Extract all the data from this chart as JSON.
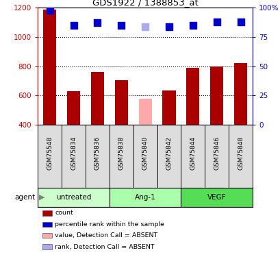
{
  "title": "GDS1922 / 1388853_at",
  "samples": [
    "GSM75548",
    "GSM75834",
    "GSM75836",
    "GSM75838",
    "GSM75840",
    "GSM75842",
    "GSM75844",
    "GSM75846",
    "GSM75848"
  ],
  "bar_values": [
    1185,
    630,
    760,
    705,
    578,
    632,
    790,
    800,
    820
  ],
  "bar_absent": [
    false,
    false,
    false,
    false,
    true,
    false,
    false,
    false,
    false
  ],
  "rank_values": [
    98,
    85,
    87,
    85,
    84,
    84,
    85,
    88,
    88
  ],
  "rank_absent": [
    false,
    false,
    false,
    false,
    true,
    false,
    false,
    false,
    false
  ],
  "bar_color_present": "#aa0000",
  "bar_color_absent": "#ffaaaa",
  "rank_color_present": "#0000cc",
  "rank_color_absent": "#aaaaee",
  "ylim_left": [
    400,
    1200
  ],
  "ylim_right": [
    0,
    100
  ],
  "yticks_left": [
    400,
    600,
    800,
    1000,
    1200
  ],
  "yticks_right": [
    0,
    25,
    50,
    75,
    100
  ],
  "yticklabels_right": [
    "0",
    "25",
    "50",
    "75",
    "100%"
  ],
  "groups": [
    {
      "label": "untreated",
      "start": 0,
      "end": 3,
      "color": "#ccffcc"
    },
    {
      "label": "Ang-1",
      "start": 3,
      "end": 6,
      "color": "#aaffaa"
    },
    {
      "label": "VEGF",
      "start": 6,
      "end": 9,
      "color": "#55dd55"
    }
  ],
  "sample_bg_color": "#dddddd",
  "agent_label": "agent",
  "legend_items": [
    {
      "label": "count",
      "color": "#aa0000"
    },
    {
      "label": "percentile rank within the sample",
      "color": "#0000cc"
    },
    {
      "label": "value, Detection Call = ABSENT",
      "color": "#ffaaaa"
    },
    {
      "label": "rank, Detection Call = ABSENT",
      "color": "#aaaaee"
    }
  ],
  "bar_width": 0.55,
  "rank_marker_size": 55,
  "grid_linestyle": ":"
}
